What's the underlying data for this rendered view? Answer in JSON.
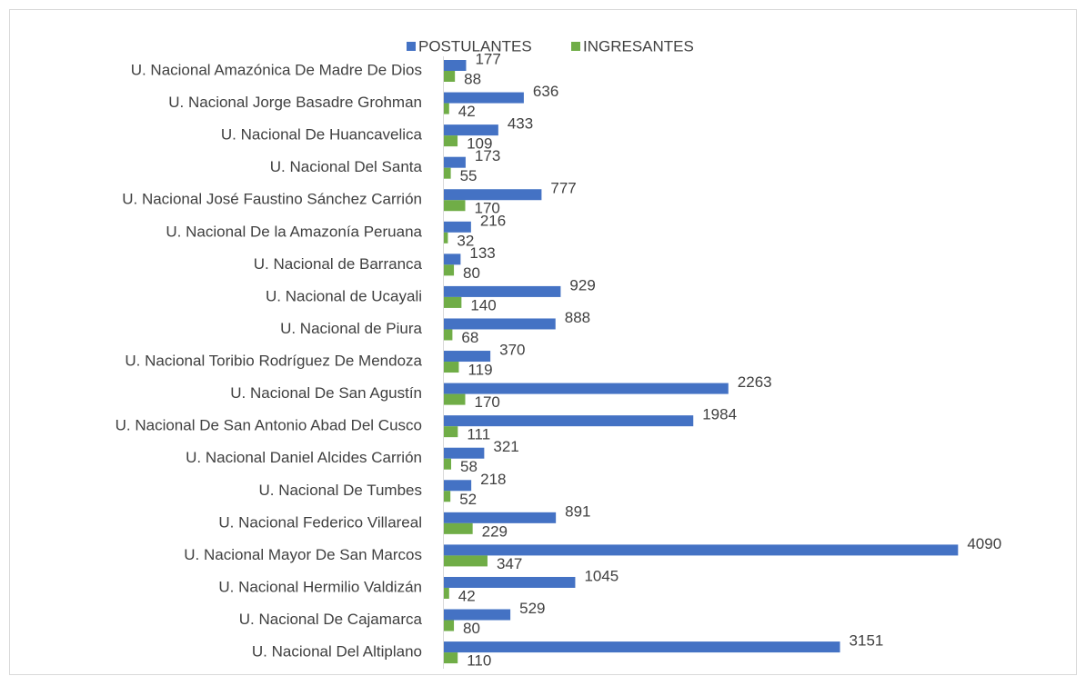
{
  "chart_data": {
    "type": "bar",
    "orientation": "horizontal",
    "categories": [
      "U. Nacional Amazónica De Madre De Dios",
      "U. Nacional Jorge Basadre Grohman",
      "U. Nacional De Huancavelica",
      "U. Nacional Del Santa",
      "U. Nacional José Faustino Sánchez Carrión",
      "U. Nacional De la Amazonía Peruana",
      "U. Nacional de Barranca",
      "U. Nacional de Ucayali",
      "U. Nacional de Piura",
      "U. Nacional Toribio Rodríguez De Mendoza",
      "U. Nacional De San Agustín",
      "U. Nacional De San Antonio Abad Del Cusco",
      "U. Nacional Daniel Alcides Carrión",
      "U. Nacional De Tumbes",
      "U. Nacional Federico Villareal",
      "U. Nacional Mayor De San Marcos",
      "U. Nacional Hermilio Valdizán",
      "U. Nacional De Cajamarca",
      "U. Nacional Del Altiplano"
    ],
    "series": [
      {
        "name": "POSTULANTES",
        "color": "#4472c4",
        "values": [
          177,
          636,
          433,
          173,
          777,
          216,
          133,
          929,
          888,
          370,
          2263,
          1984,
          321,
          218,
          891,
          4090,
          1045,
          529,
          3151
        ]
      },
      {
        "name": "INGRESANTES",
        "color": "#70ad47",
        "values": [
          88,
          42,
          109,
          55,
          170,
          32,
          80,
          140,
          68,
          119,
          170,
          111,
          58,
          52,
          229,
          347,
          42,
          80,
          110
        ]
      }
    ],
    "xlim": [
      0,
      4500
    ],
    "legend": "top"
  }
}
